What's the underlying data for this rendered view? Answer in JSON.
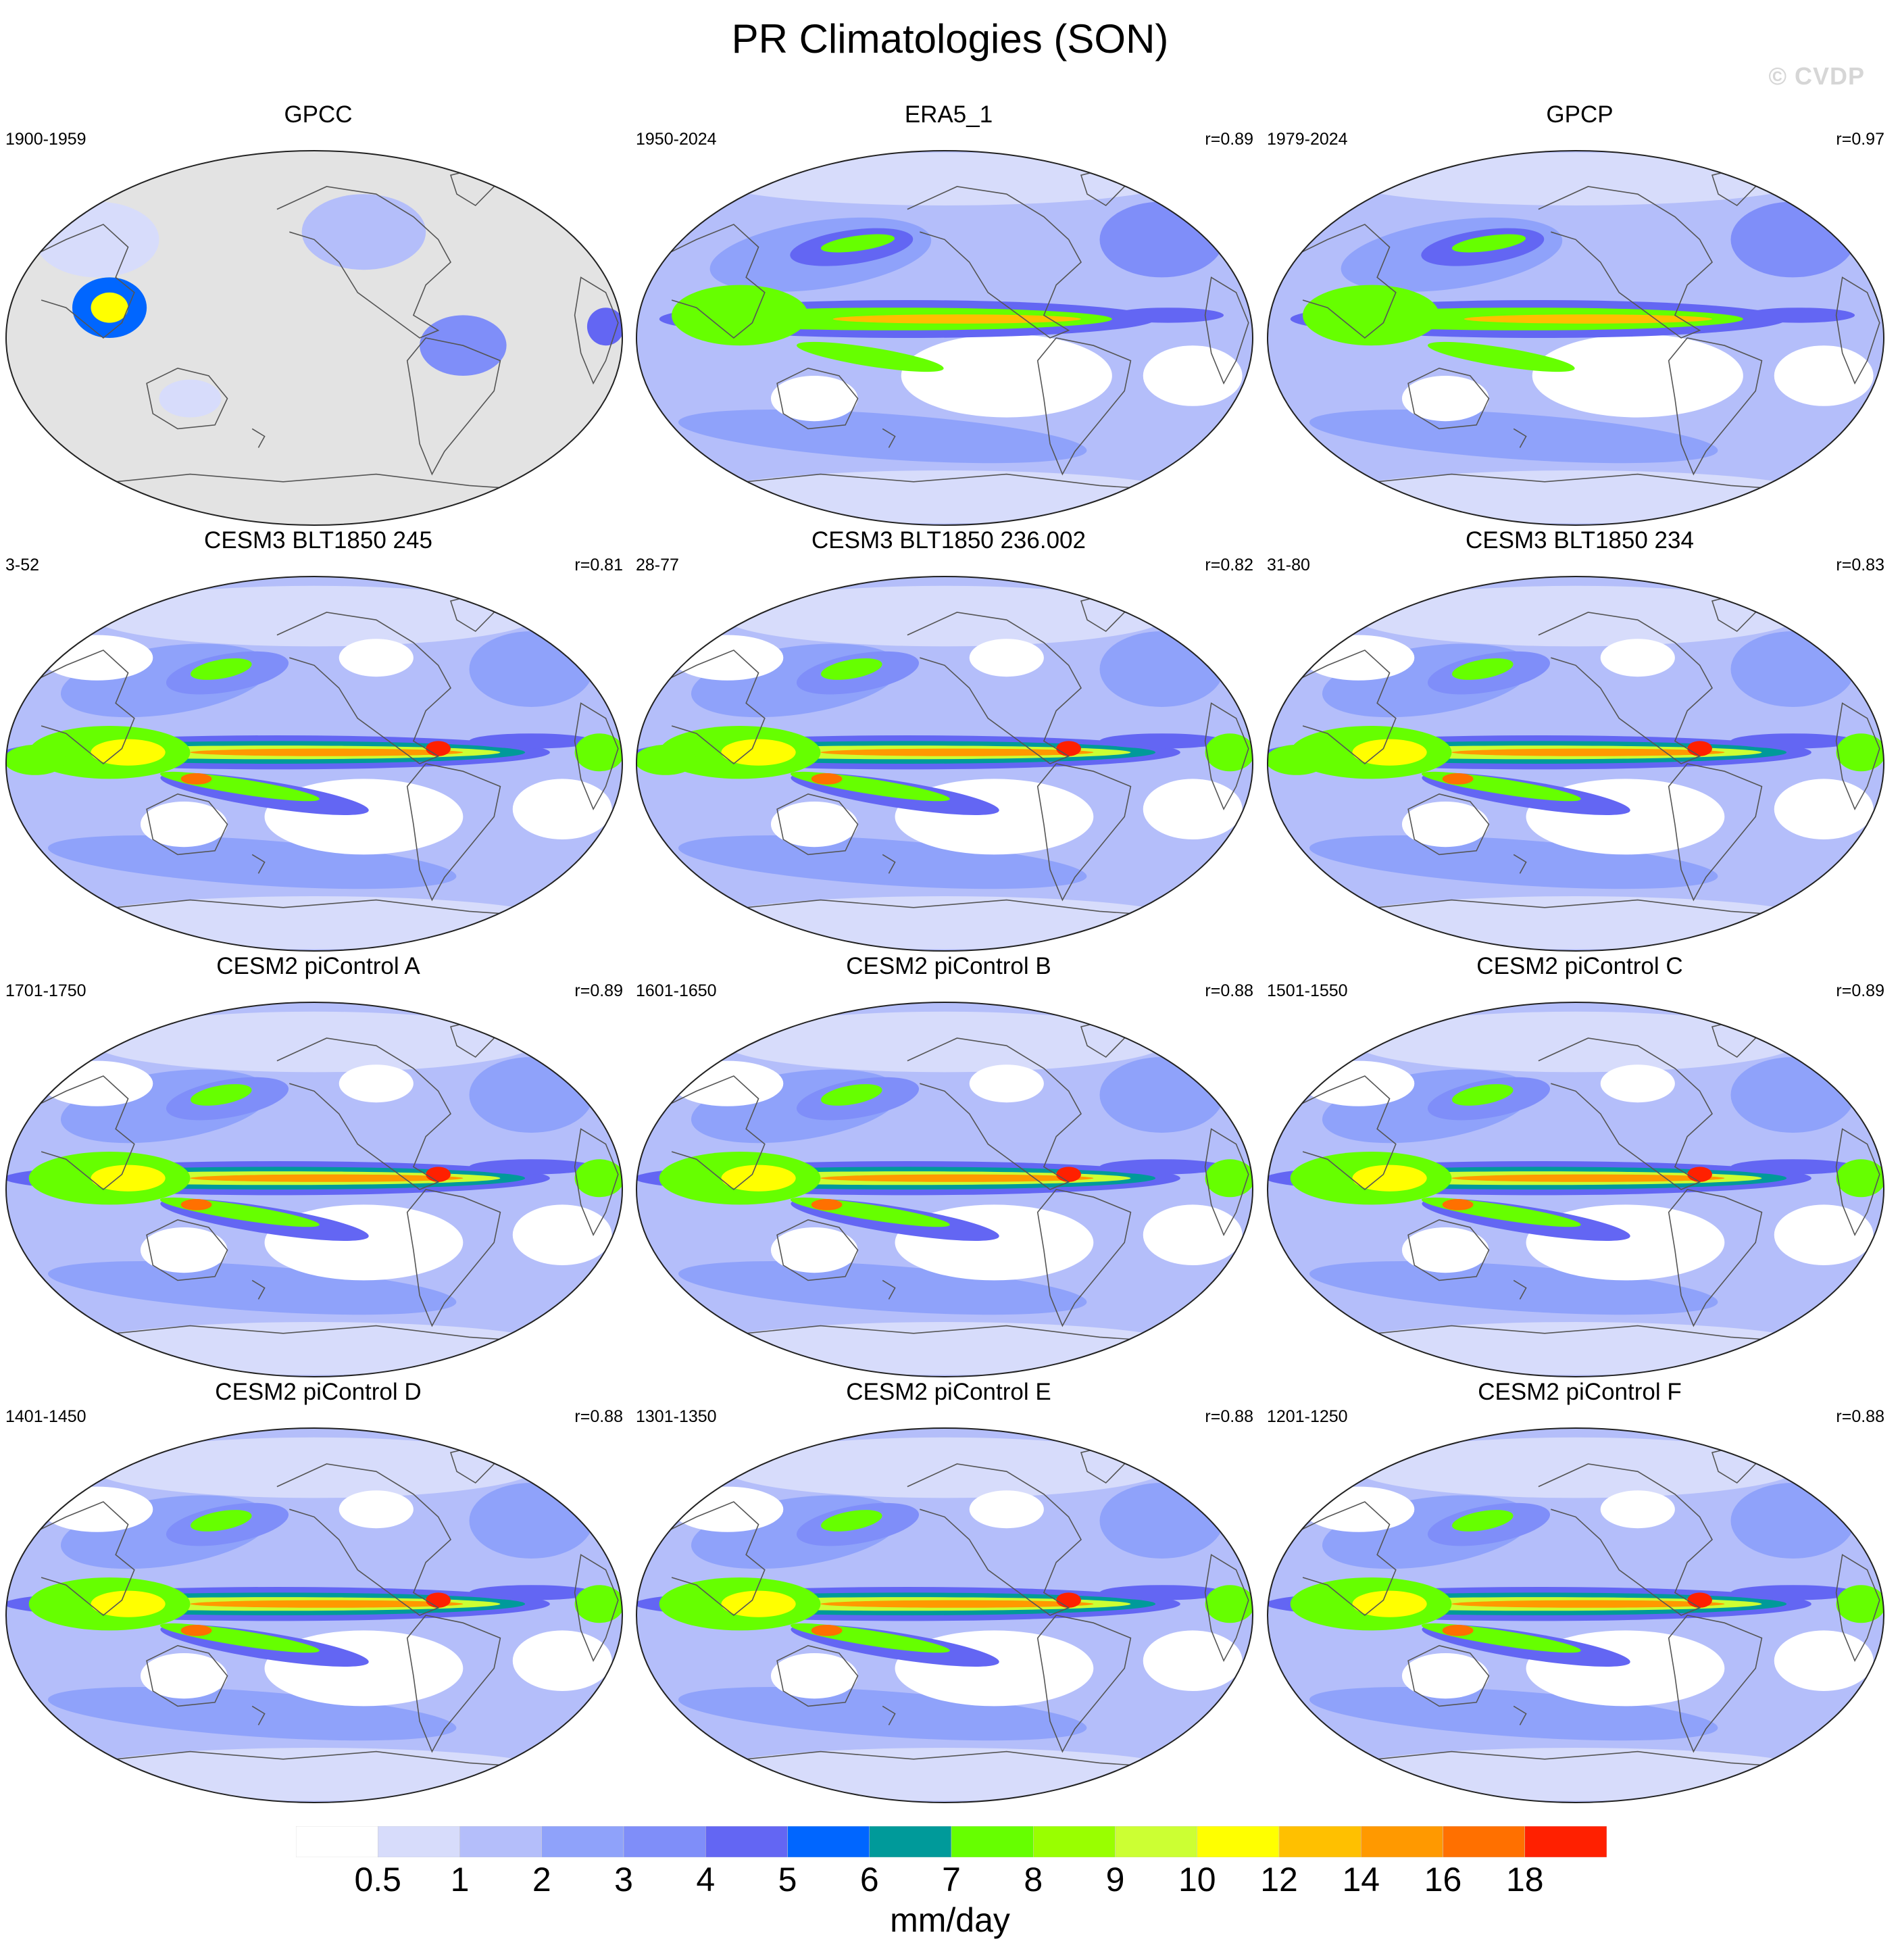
{
  "figure": {
    "title": "PR Climatologies (SON)",
    "watermark": "© CVDP",
    "units": "mm/day"
  },
  "colorbar": {
    "colors": [
      "#ffffff",
      "#d7dcfb",
      "#b4befa",
      "#8fa2fa",
      "#7f8ef9",
      "#6366f3",
      "#0066ff",
      "#009a9a",
      "#66ff00",
      "#99ff00",
      "#ccff33",
      "#ffff00",
      "#ffc000",
      "#ff9900",
      "#ff7000",
      "#ff2000"
    ],
    "levels": [
      "0.5",
      "1",
      "2",
      "3",
      "4",
      "5",
      "6",
      "7",
      "8",
      "9",
      "10",
      "12",
      "14",
      "16",
      "18"
    ]
  },
  "panels": [
    {
      "title": "GPCC",
      "period": "1900-1959",
      "r": "",
      "type": "obs-land"
    },
    {
      "title": "ERA5_1",
      "period": "1950-2024",
      "r": "r=0.89",
      "type": "obs"
    },
    {
      "title": "GPCP",
      "period": "1979-2024",
      "r": "r=0.97",
      "type": "obs"
    },
    {
      "title": "CESM3 BLT1850 245",
      "period": "3-52",
      "r": "r=0.81",
      "type": "model"
    },
    {
      "title": "CESM3 BLT1850 236.002",
      "period": "28-77",
      "r": "r=0.82",
      "type": "model"
    },
    {
      "title": "CESM3 BLT1850 234",
      "period": "31-80",
      "r": "r=0.83",
      "type": "model"
    },
    {
      "title": "CESM2 piControl A",
      "period": "1701-1750",
      "r": "r=0.89",
      "type": "model"
    },
    {
      "title": "CESM2 piControl B",
      "period": "1601-1650",
      "r": "r=0.88",
      "type": "model"
    },
    {
      "title": "CESM2 piControl C",
      "period": "1501-1550",
      "r": "r=0.89",
      "type": "model"
    },
    {
      "title": "CESM2 piControl D",
      "period": "1401-1450",
      "r": "r=0.88",
      "type": "model"
    },
    {
      "title": "CESM2 piControl E",
      "period": "1301-1350",
      "r": "r=0.88",
      "type": "model"
    },
    {
      "title": "CESM2 piControl F",
      "period": "1201-1250",
      "r": "r=0.88",
      "type": "model"
    }
  ]
}
